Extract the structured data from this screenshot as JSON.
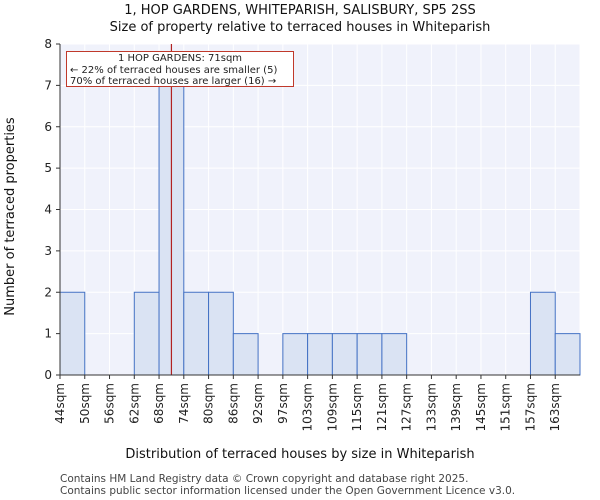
{
  "chart_data": {
    "type": "bar",
    "title": "1, HOP GARDENS, WHITEPARISH, SALISBURY, SP5 2SS",
    "subtitle": "Size of property relative to terraced houses in Whiteparish",
    "xlabel": "Distribution of terraced houses by size in Whiteparish",
    "ylabel": "Number of terraced properties",
    "categories": [
      "44sqm",
      "50sqm",
      "56sqm",
      "62sqm",
      "68sqm",
      "74sqm",
      "80sqm",
      "86sqm",
      "92sqm",
      "97sqm",
      "103sqm",
      "109sqm",
      "115sqm",
      "121sqm",
      "127sqm",
      "133sqm",
      "139sqm",
      "145sqm",
      "151sqm",
      "157sqm",
      "163sqm"
    ],
    "values": [
      2,
      0,
      0,
      2,
      7,
      2,
      2,
      1,
      0,
      1,
      1,
      1,
      1,
      1,
      0,
      0,
      0,
      0,
      0,
      2,
      1
    ],
    "ylim": [
      0,
      8
    ],
    "yticks": [
      0,
      1,
      2,
      3,
      4,
      5,
      6,
      7,
      8
    ],
    "highlight_bin": 4,
    "marker": {
      "value": 71,
      "color": "#b22222"
    },
    "colors": {
      "bar": "#dae3f3",
      "bar_highlight": "#dae3f3",
      "bar_edge": "#4472c4",
      "plot_bg": "#f0f2fb"
    },
    "annotation": {
      "line1": "1 HOP GARDENS: 71sqm",
      "line2": "← 22% of terraced houses are smaller (5)",
      "line3": "70% of terraced houses are larger (16) →"
    }
  },
  "footer": {
    "line1": "Contains HM Land Registry data © Crown copyright and database right 2025.",
    "line2": "Contains public sector information licensed under the Open Government Licence v3.0."
  }
}
